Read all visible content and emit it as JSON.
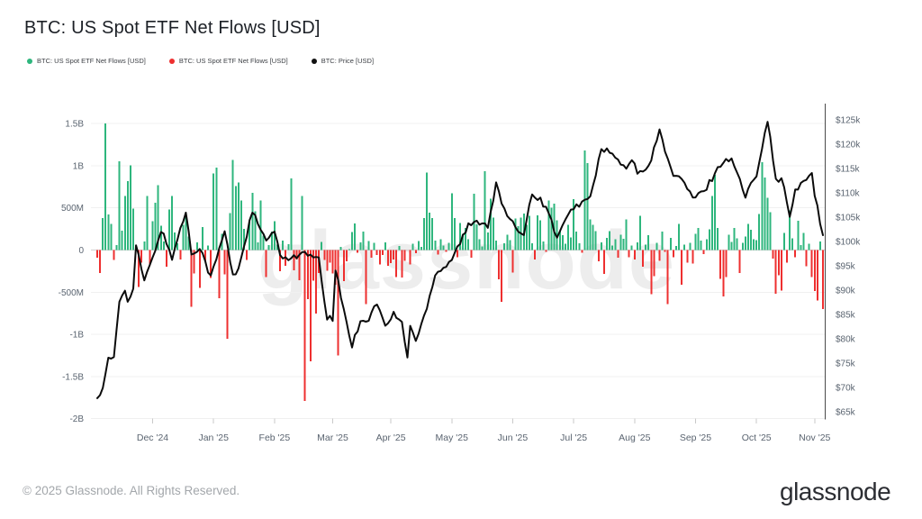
{
  "page": {
    "title": "BTC: US Spot ETF Net Flows [USD]"
  },
  "legend": {
    "items": [
      {
        "label": "BTC: US Spot ETF Net Flows [USD]",
        "color": "#2eb67d"
      },
      {
        "label": "BTC: US Spot ETF Net Flows [USD]",
        "color": "#ee2f2f"
      },
      {
        "label": "BTC: Price [USD]",
        "color": "#111111"
      }
    ]
  },
  "watermark": {
    "text": "glassnode"
  },
  "footer": {
    "copyright": "© 2025 Glassnode. All Rights Reserved.",
    "brand": "glassnode"
  },
  "chart_data": {
    "type": "bar+line",
    "title": "BTC: US Spot ETF Net Flows [USD]",
    "legend_position": "top-left",
    "grid": "horizontal",
    "x_axis": {
      "tick_labels": [
        "Dec '24",
        "Jan '25",
        "Feb '25",
        "Mar '25",
        "Apr '25",
        "May '25",
        "Jun '25",
        "Jul '25",
        "Aug '25",
        "Sep '25",
        "Oct '25",
        "Nov '25"
      ],
      "tick_indices": [
        20,
        42,
        64,
        85,
        106,
        128,
        150,
        172,
        194,
        216,
        238,
        259
      ]
    },
    "flow_axis": {
      "side": "left",
      "unit": "USD",
      "tick_labels": [
        "1.5B",
        "1B",
        "500M",
        "0",
        "-500M",
        "-1B",
        "-1.5B",
        "-2B"
      ],
      "tick_values_M": [
        1500,
        1000,
        500,
        0,
        -500,
        -1000,
        -1500,
        -2000
      ],
      "range_M": [
        -2000,
        1500
      ]
    },
    "price_axis": {
      "side": "right",
      "unit": "USD",
      "tick_labels": [
        "$125k",
        "$120k",
        "$115k",
        "$110k",
        "$105k",
        "$100k",
        "$95k",
        "$90k",
        "$85k",
        "$80k",
        "$75k",
        "$70k",
        "$65k"
      ],
      "tick_values_k": [
        125,
        120,
        115,
        110,
        105,
        100,
        95,
        90,
        85,
        80,
        75,
        70,
        65
      ],
      "range_k": [
        65,
        125
      ]
    },
    "series": [
      {
        "name": "BTC: US Spot ETF Net Flows [USD] (inflows)",
        "type": "bar",
        "color": "#2eb67d"
      },
      {
        "name": "BTC: US Spot ETF Net Flows [USD] (outflows)",
        "type": "bar",
        "color": "#ee2f2f"
      },
      {
        "name": "BTC: Price [USD]",
        "type": "line",
        "color": "#0b0b0b"
      }
    ],
    "flows_M": [
      -90,
      -270,
      380,
      1500,
      420,
      310,
      -120,
      60,
      1050,
      230,
      640,
      820,
      1005,
      490,
      60,
      -438,
      -150,
      100,
      640,
      -180,
      340,
      560,
      770,
      290,
      100,
      -200,
      480,
      640,
      210,
      80,
      -110,
      300,
      430,
      160,
      -671,
      -280,
      90,
      -450,
      270,
      -140,
      56,
      -330,
      910,
      980,
      -570,
      190,
      -290,
      -1050,
      440,
      1070,
      760,
      802,
      590,
      250,
      -120,
      340,
      680,
      460,
      90,
      588,
      170,
      -320,
      60,
      220,
      340,
      66,
      -250,
      110,
      -186,
      70,
      850,
      -240,
      -110,
      -360,
      640,
      -1790,
      -580,
      -1320,
      -364,
      -754,
      -275,
      94,
      -120,
      -244,
      -150,
      -280,
      -409,
      -1250,
      40,
      -371,
      -135,
      13,
      216,
      316,
      -33,
      89,
      221,
      -640,
      105,
      -93,
      84,
      -59,
      -172,
      -60,
      89,
      -189,
      -157,
      -110,
      -320,
      46,
      -326,
      -127,
      1,
      -170,
      76,
      -38,
      108,
      36,
      381,
      917,
      442,
      380,
      110,
      -56,
      130,
      56,
      -22,
      84,
      675,
      380,
      -85,
      320,
      190,
      260,
      130,
      -91,
      667,
      306,
      130,
      41,
      934,
      211,
      608,
      385,
      110,
      -346,
      -616,
      82,
      180,
      120,
      -268,
      375,
      284,
      386,
      431,
      301,
      408,
      81,
      -110,
      412,
      350,
      102,
      -19,
      588,
      501,
      548,
      350,
      228,
      179,
      75,
      298,
      150,
      602,
      217,
      80,
      -33,
      1180,
      1030,
      363,
      297,
      226,
      -131,
      90,
      -285,
      142,
      226,
      51,
      130,
      -93,
      180,
      131,
      363,
      -85,
      56,
      -112,
      91,
      404,
      -196,
      65,
      179,
      -523,
      -310,
      88,
      -127,
      219,
      -23,
      -640,
      142,
      -88,
      46,
      310,
      -411,
      64,
      -151,
      83,
      -160,
      190,
      260,
      110,
      -46,
      130,
      244,
      640,
      890,
      260,
      -340,
      -550,
      -320,
      180,
      95,
      260,
      141,
      -270,
      88,
      160,
      310,
      240,
      130,
      117,
      430,
      1040,
      860,
      620,
      450,
      -101,
      -520,
      -300,
      -480,
      202,
      -150,
      470,
      140,
      -88,
      346,
      61,
      203,
      -191,
      74,
      -320,
      -488,
      -599,
      100,
      -700
    ],
    "price_waypoints": [
      [
        0,
        67.8
      ],
      [
        2,
        69.5
      ],
      [
        4,
        75.6
      ],
      [
        6,
        76.2
      ],
      [
        8,
        88.0
      ],
      [
        10,
        90.5
      ],
      [
        11,
        87.3
      ],
      [
        13,
        90.4
      ],
      [
        14,
        98.9
      ],
      [
        17,
        92.0
      ],
      [
        20,
        96.4
      ],
      [
        23,
        102.5
      ],
      [
        27,
        96.7
      ],
      [
        32,
        106.2
      ],
      [
        34,
        97.5
      ],
      [
        37,
        99.0
      ],
      [
        41,
        92.6
      ],
      [
        46,
        102.1
      ],
      [
        49,
        92.8
      ],
      [
        51,
        94.5
      ],
      [
        56,
        106.2
      ],
      [
        61,
        99.8
      ],
      [
        64,
        102.4
      ],
      [
        66,
        96.6
      ],
      [
        70,
        96.8
      ],
      [
        75,
        97.5
      ],
      [
        80,
        96.1
      ],
      [
        83,
        84.0
      ],
      [
        85,
        84.3
      ],
      [
        86,
        94.2
      ],
      [
        89,
        86.0
      ],
      [
        92,
        78.5
      ],
      [
        95,
        83.9
      ],
      [
        98,
        84.0
      ],
      [
        101,
        87.5
      ],
      [
        104,
        82.4
      ],
      [
        107,
        85.1
      ],
      [
        110,
        83.2
      ],
      [
        112,
        76.3
      ],
      [
        113,
        82.6
      ],
      [
        115,
        79.6
      ],
      [
        118,
        84.5
      ],
      [
        122,
        93.4
      ],
      [
        125,
        94.6
      ],
      [
        128,
        96.5
      ],
      [
        134,
        103.2
      ],
      [
        138,
        104.1
      ],
      [
        141,
        103.4
      ],
      [
        144,
        111.7
      ],
      [
        146,
        108.0
      ],
      [
        149,
        104.0
      ],
      [
        154,
        101.6
      ],
      [
        157,
        110.2
      ],
      [
        162,
        107.2
      ],
      [
        166,
        100.9
      ],
      [
        172,
        107.1
      ],
      [
        178,
        108.9
      ],
      [
        182,
        119.1
      ],
      [
        186,
        117.9
      ],
      [
        190,
        115.1
      ],
      [
        194,
        116.5
      ],
      [
        195,
        113.4
      ],
      [
        200,
        116.7
      ],
      [
        203,
        122.8
      ],
      [
        208,
        113.3
      ],
      [
        211,
        113.0
      ],
      [
        215,
        108.8
      ],
      [
        219,
        110.2
      ],
      [
        225,
        115.9
      ],
      [
        229,
        117.3
      ],
      [
        234,
        109.2
      ],
      [
        238,
        114.0
      ],
      [
        242,
        125.2
      ],
      [
        245,
        112.5
      ],
      [
        247,
        113.2
      ],
      [
        250,
        105.2
      ],
      [
        252,
        110.2
      ],
      [
        258,
        114.2
      ],
      [
        259,
        110.0
      ],
      [
        260,
        107.0
      ],
      [
        261,
        103.5
      ],
      [
        262,
        101.3
      ]
    ]
  }
}
